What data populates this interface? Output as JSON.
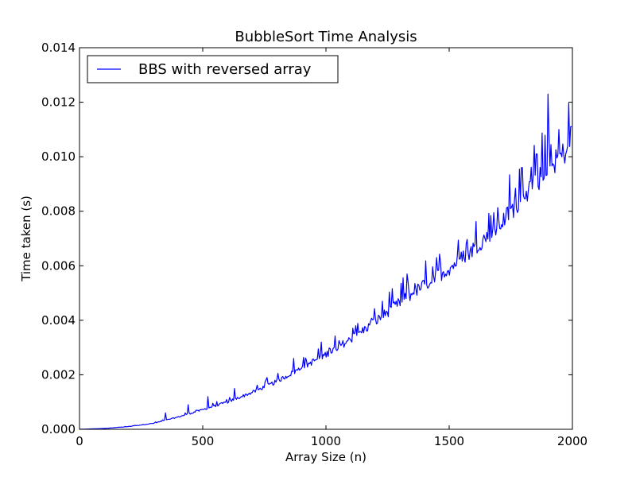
{
  "chart_data": {
    "type": "line",
    "title": "BubbleSort Time Analysis",
    "xlabel": "Array Size (n)",
    "ylabel": "Time taken (s)",
    "xlim": [
      0,
      2000
    ],
    "ylim": [
      0,
      0.014
    ],
    "x_ticks": [
      0,
      500,
      1000,
      1500,
      2000
    ],
    "x_tick_labels": [
      "0",
      "500",
      "1000",
      "1500",
      "2000"
    ],
    "y_ticks": [
      0,
      0.002,
      0.004,
      0.006,
      0.008,
      0.01,
      0.012,
      0.014
    ],
    "y_tick_labels": [
      "0.000",
      "0.002",
      "0.004",
      "0.006",
      "0.008",
      "0.010",
      "0.012",
      "0.014"
    ],
    "grid": false,
    "legend_position": "top-left",
    "series": [
      {
        "name": "BBS with reversed array",
        "color": "#0000ff",
        "x": [
          0,
          100,
          200,
          300,
          400,
          500,
          600,
          700,
          800,
          900,
          1000,
          1100,
          1200,
          1300,
          1400,
          1500,
          1600,
          1700,
          1800,
          1900,
          2000
        ],
        "y": [
          0.0,
          3e-05,
          0.0001,
          0.00022,
          0.00045,
          0.00072,
          0.001,
          0.00135,
          0.00175,
          0.00225,
          0.00275,
          0.0033,
          0.00395,
          0.00465,
          0.0053,
          0.0059,
          0.00665,
          0.00745,
          0.00855,
          0.00945,
          0.0105
        ],
        "spikes": [
          {
            "x": 350,
            "y": 0.0006
          },
          {
            "x": 440,
            "y": 0.0009
          },
          {
            "x": 520,
            "y": 0.0012
          },
          {
            "x": 630,
            "y": 0.0015
          },
          {
            "x": 760,
            "y": 0.0019
          },
          {
            "x": 870,
            "y": 0.0026
          },
          {
            "x": 980,
            "y": 0.0032
          },
          {
            "x": 1120,
            "y": 0.0038
          },
          {
            "x": 1230,
            "y": 0.0047
          },
          {
            "x": 1330,
            "y": 0.0057
          },
          {
            "x": 1450,
            "y": 0.0063
          },
          {
            "x": 1570,
            "y": 0.0068
          },
          {
            "x": 1700,
            "y": 0.0077
          },
          {
            "x": 1795,
            "y": 0.0096
          },
          {
            "x": 1855,
            "y": 0.0101
          },
          {
            "x": 1900,
            "y": 0.0123
          },
          {
            "x": 1945,
            "y": 0.011
          },
          {
            "x": 1995,
            "y": 0.0111
          }
        ]
      }
    ]
  }
}
